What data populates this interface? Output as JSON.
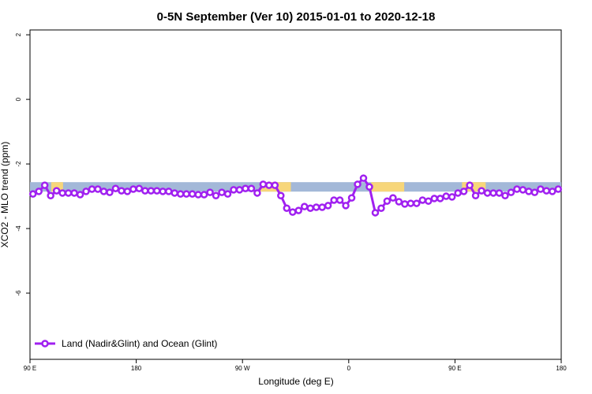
{
  "chart_data": {
    "type": "line",
    "title": "0-5N September (Ver 10)   2015-01-01 to 2020-12-18",
    "x_label": "Longitude (deg E)",
    "y_label": "XCO2 - MLO trend (ppm)",
    "xlim": [
      90,
      540
    ],
    "xticks": [
      {
        "value": 90,
        "label": "90 E"
      },
      180,
      {
        "value": 270,
        "label": "90 W"
      },
      {
        "value": 360,
        "label": "0"
      },
      {
        "value": 450,
        "label": "90 E"
      },
      {
        "value": 540,
        "label": "180"
      }
    ],
    "ylim": [
      -8.05,
      2.15
    ],
    "yticks": [
      2,
      0,
      -2,
      -4,
      -6
    ],
    "grid": false,
    "legend": "bottom-left",
    "surface_band": {
      "y": -2.71,
      "ocean_color": "#a3b8d8",
      "land_color": "#f7d67a",
      "land_ranges": [
        [
          108,
          118
        ],
        [
          285,
          311
        ],
        [
          379,
          407
        ],
        [
          456,
          476
        ]
      ]
    },
    "x": [
      92.5,
      97.5,
      102.5,
      107.5,
      112.5,
      117.5,
      122.5,
      127.5,
      132.5,
      137.5,
      142.5,
      147.5,
      152.5,
      157.5,
      162.5,
      167.5,
      172.5,
      177.5,
      182.5,
      187.5,
      192.5,
      197.5,
      202.5,
      207.5,
      212.5,
      217.5,
      222.5,
      227.5,
      232.5,
      237.5,
      242.5,
      247.5,
      252.5,
      257.5,
      262.5,
      267.5,
      272.5,
      277.5,
      282.5,
      287.5,
      292.5,
      297.5,
      302.5,
      307.5,
      312.5,
      317.5,
      322.5,
      327.5,
      332.5,
      337.5,
      342.5,
      347.5,
      352.5,
      357.5,
      362.5,
      367.5,
      372.5,
      377.5,
      382.5,
      387.5,
      392.5,
      397.5,
      402.5,
      407.5,
      412.5,
      417.5,
      422.5,
      427.5,
      432.5,
      437.5,
      442.5,
      447.5,
      452.5,
      457.5,
      462.5,
      467.5,
      472.5,
      477.5,
      482.5,
      487.5,
      492.5,
      497.5,
      502.5,
      507.5,
      512.5,
      517.5,
      522.5,
      527.5,
      532.5,
      537.5
    ],
    "series": [
      {
        "name": "Land (Nadir&Glint) and Ocean (Glint)",
        "color": "#a020f0",
        "values": [
          -2.93,
          -2.85,
          -2.66,
          -2.98,
          -2.83,
          -2.9,
          -2.9,
          -2.9,
          -2.95,
          -2.85,
          -2.78,
          -2.78,
          -2.85,
          -2.88,
          -2.76,
          -2.83,
          -2.85,
          -2.78,
          -2.76,
          -2.83,
          -2.83,
          -2.83,
          -2.85,
          -2.85,
          -2.9,
          -2.93,
          -2.93,
          -2.93,
          -2.95,
          -2.95,
          -2.88,
          -2.98,
          -2.88,
          -2.93,
          -2.8,
          -2.8,
          -2.76,
          -2.76,
          -2.9,
          -2.63,
          -2.66,
          -2.66,
          -2.98,
          -3.37,
          -3.49,
          -3.44,
          -3.32,
          -3.37,
          -3.34,
          -3.34,
          -3.29,
          -3.12,
          -3.12,
          -3.29,
          -3.05,
          -2.63,
          -2.44,
          -2.71,
          -3.51,
          -3.37,
          -3.15,
          -3.05,
          -3.17,
          -3.24,
          -3.22,
          -3.22,
          -3.12,
          -3.15,
          -3.07,
          -3.07,
          -3.0,
          -3.02,
          -2.9,
          -2.85,
          -2.66,
          -2.98,
          -2.83,
          -2.9,
          -2.9,
          -2.9,
          -2.98,
          -2.88,
          -2.78,
          -2.8,
          -2.85,
          -2.88,
          -2.78,
          -2.83,
          -2.85,
          -2.78
        ]
      }
    ]
  }
}
